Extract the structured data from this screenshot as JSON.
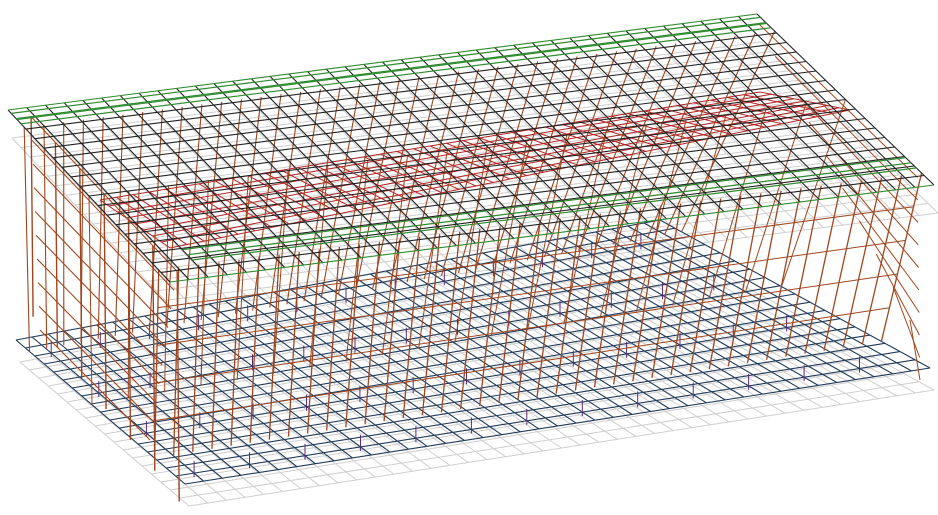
{
  "model": {
    "type": "3d-rebar-cage-wireframe",
    "projection": "isometric",
    "grid_rows": 18,
    "grid_cols": 40,
    "column_count_across": 6,
    "column_count_along": 38,
    "colors": {
      "background": "#ffffff",
      "bottom_mesh": "#1f3a5a",
      "top_mesh_dark": "#222222",
      "top_mesh_edge": "#2e8b2e",
      "interior_top_mesh": "#b22222",
      "vertical_bars": "#a0461e",
      "ghost_mesh": "#cfcfcf",
      "starter_bars": "#5a2a7a"
    }
  }
}
